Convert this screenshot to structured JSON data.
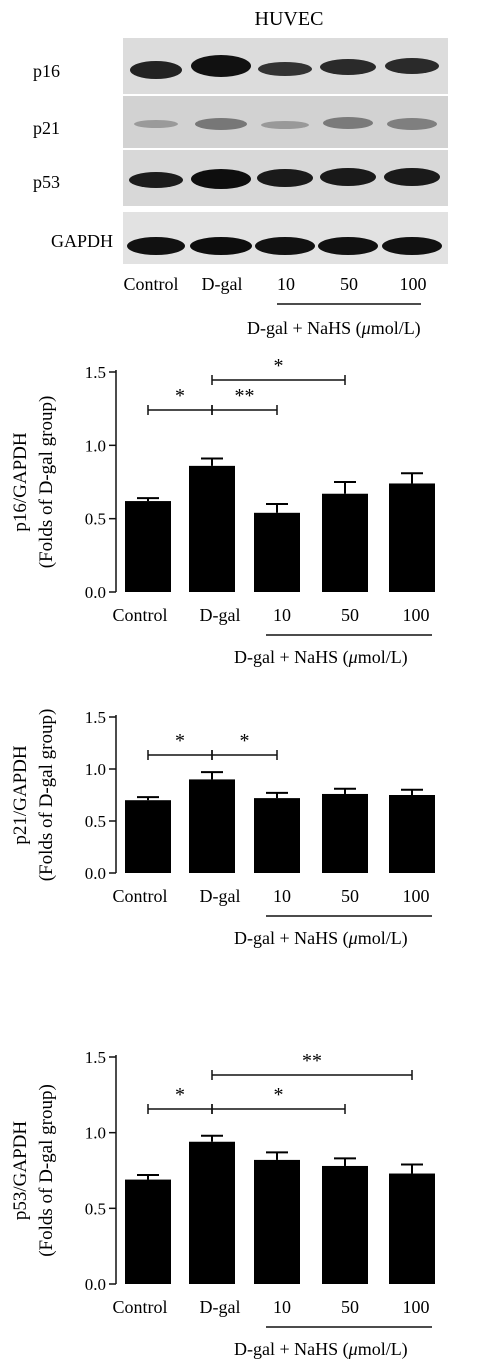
{
  "blot": {
    "title": "HUVEC",
    "proteins": [
      "p16",
      "p21",
      "p53",
      "GAPDH"
    ],
    "lanes": [
      "Control",
      "D-gal",
      "10",
      "50",
      "100"
    ],
    "treatment_label_prefix": "D-gal + NaHS (",
    "treatment_label_mu": "μ",
    "treatment_label_suffix": "mol/L)"
  },
  "chart_data": [
    {
      "type": "bar",
      "categories": [
        "Control",
        "D-gal",
        "10",
        "50",
        "100"
      ],
      "values": [
        0.62,
        0.86,
        0.54,
        0.67,
        0.74
      ],
      "errors": [
        0.02,
        0.05,
        0.06,
        0.08,
        0.07
      ],
      "ylabel_line1": "p16/GAPDH",
      "ylabel_line2": "(Folds of D-gal group)",
      "yticks": [
        "0.0",
        "0.5",
        "1.0",
        "1.5"
      ],
      "ylim": [
        0,
        1.5
      ],
      "group_label": "D-gal + NaHS (μmol/L)",
      "significance": [
        {
          "from": 0,
          "to": 1,
          "label": "*"
        },
        {
          "from": 1,
          "to": 2,
          "label": "**"
        },
        {
          "from": 1,
          "to": 3,
          "label": "*"
        }
      ]
    },
    {
      "type": "bar",
      "categories": [
        "Control",
        "D-gal",
        "10",
        "50",
        "100"
      ],
      "values": [
        0.7,
        0.9,
        0.72,
        0.76,
        0.75
      ],
      "errors": [
        0.03,
        0.07,
        0.05,
        0.05,
        0.05
      ],
      "ylabel_line1": "p21/GAPDH",
      "ylabel_line2": "(Folds of D-gal group)",
      "yticks": [
        "0.0",
        "0.5",
        "1.0",
        "1.5"
      ],
      "ylim": [
        0,
        1.5
      ],
      "group_label": "D-gal + NaHS (μmol/L)",
      "significance": [
        {
          "from": 0,
          "to": 1,
          "label": "*"
        },
        {
          "from": 1,
          "to": 2,
          "label": "*"
        }
      ]
    },
    {
      "type": "bar",
      "categories": [
        "Control",
        "D-gal",
        "10",
        "50",
        "100"
      ],
      "values": [
        0.69,
        0.94,
        0.82,
        0.78,
        0.73
      ],
      "errors": [
        0.03,
        0.04,
        0.05,
        0.05,
        0.06
      ],
      "ylabel_line1": "p53/GAPDH",
      "ylabel_line2": "(Folds of D-gal group)",
      "yticks": [
        "0.0",
        "0.5",
        "1.0",
        "1.5"
      ],
      "ylim": [
        0,
        1.5
      ],
      "group_label": "D-gal + NaHS (μmol/L)",
      "significance": [
        {
          "from": 0,
          "to": 1,
          "label": "*"
        },
        {
          "from": 1,
          "to": 3,
          "label": "*"
        },
        {
          "from": 1,
          "to": 4,
          "label": "**"
        }
      ]
    }
  ]
}
